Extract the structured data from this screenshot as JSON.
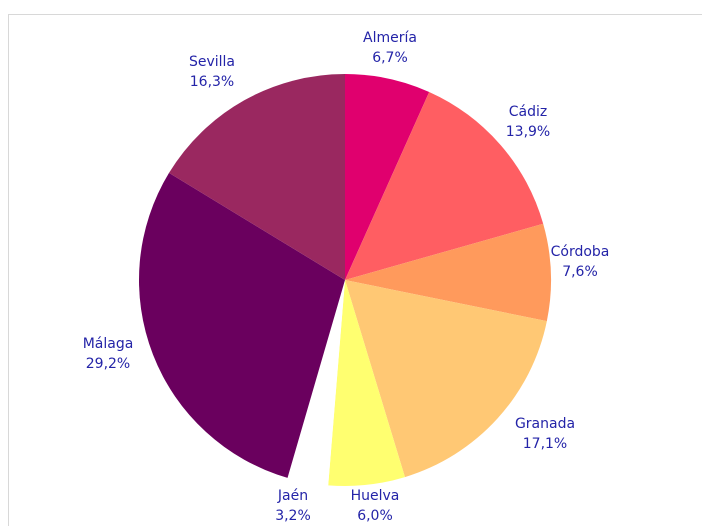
{
  "chart_data": {
    "type": "pie",
    "categories": [
      "Almería",
      "Cádiz",
      "Córdoba",
      "Granada",
      "Huelva",
      "Jaén",
      "Málaga",
      "Sevilla"
    ],
    "values": [
      6.7,
      13.9,
      7.6,
      17.1,
      6.0,
      3.2,
      29.2,
      16.3
    ],
    "value_labels": [
      "6,7%",
      "13,9%",
      "7,6%",
      "17,1%",
      "6,0%",
      "3,2%",
      "29,2%",
      "16,3%"
    ],
    "colors": [
      "#e0006e",
      "#ff5e62",
      "#ff9a5c",
      "#ffc874",
      "#ffff70",
      "#ffffff",
      "#6a005e",
      "#9a2860"
    ]
  }
}
